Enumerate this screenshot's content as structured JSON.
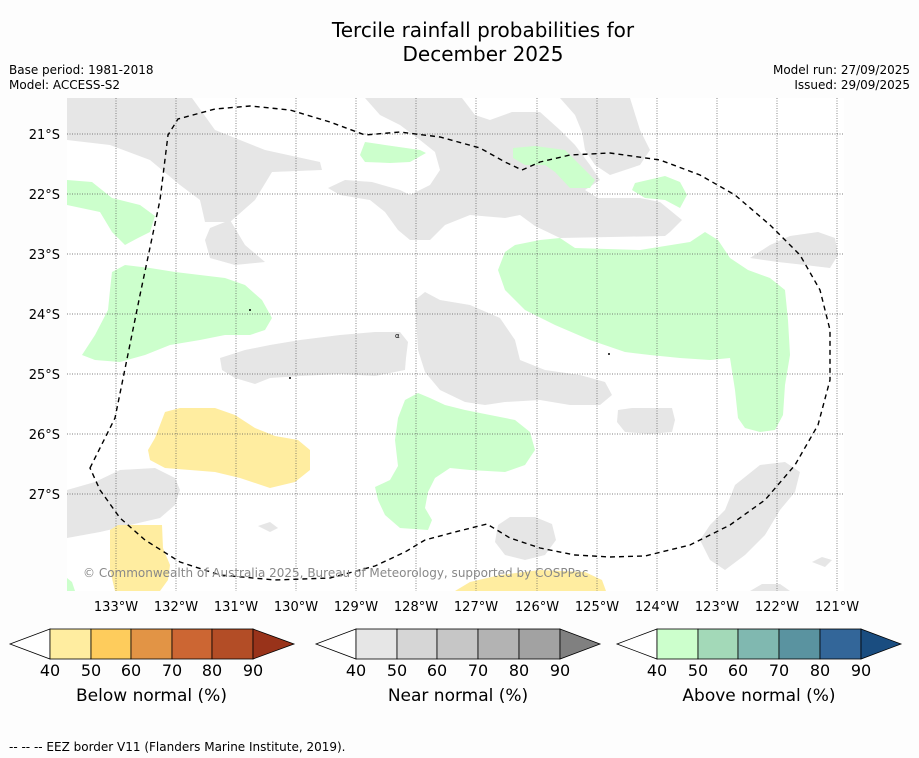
{
  "title_line1": "Tercile rainfall probabilities for",
  "title_line2": "December 2025",
  "base_period": "Base period: 1981-2018",
  "model": "Model: ACCESS-S2",
  "model_run": "Model run: 27/09/2025",
  "issued": "Issued: 29/09/2025",
  "lat_labels": [
    "21°S",
    "22°S",
    "23°S",
    "24°S",
    "25°S",
    "26°S",
    "27°S"
  ],
  "lon_labels": [
    "133°W",
    "132°W",
    "131°W",
    "130°W",
    "129°W",
    "128°W",
    "127°W",
    "126°W",
    "125°W",
    "124°W",
    "123°W",
    "122°W",
    "121°W"
  ],
  "copyright": "© Commonwealth of Australia 2025, Bureau of Meteorology, supported by COSPPac",
  "colorbars": [
    {
      "label": "Below normal (%)",
      "ticks": [
        "40",
        "50",
        "60",
        "70",
        "80",
        "90"
      ],
      "colors": [
        "#ffeda0",
        "#fecc5c",
        "#e29445",
        "#cc6633",
        "#b34d26",
        "#99331a"
      ]
    },
    {
      "label": "Near normal (%)",
      "ticks": [
        "40",
        "50",
        "60",
        "70",
        "80",
        "90"
      ],
      "colors": [
        "#e6e6e6",
        "#d6d6d6",
        "#c6c6c6",
        "#b3b3b3",
        "#a2a2a2",
        "#808080"
      ]
    },
    {
      "label": "Above normal (%)",
      "ticks": [
        "40",
        "50",
        "60",
        "70",
        "80",
        "90"
      ],
      "colors": [
        "#ccffcc",
        "#a3d9b8",
        "#80b8b0",
        "#5a93a0",
        "#336699",
        "#1a4d80"
      ]
    }
  ],
  "footer": "--  --  -- EEZ border V11 (Flanders Marine Institute, 2019)."
}
